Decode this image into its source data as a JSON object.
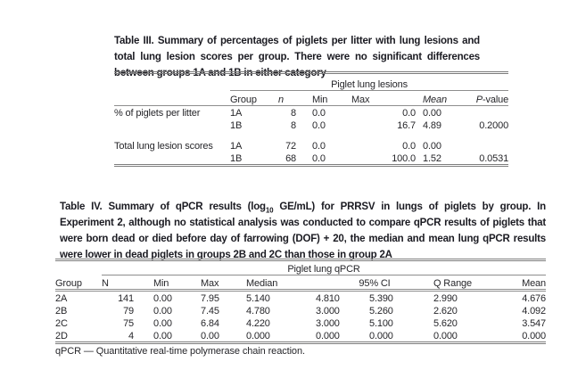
{
  "colors": {
    "page_background": "#ffffff",
    "caption_text": "#1b1b22",
    "body_text": "#26262a",
    "rule_gray": "#7d7d7d"
  },
  "table3": {
    "caption": "Table III. Summary of percentages of piglets per litter with lung lesions and total lung lesion scores per group. There were no significant differences between groups 1A and 1B in either category",
    "span_header": "Piglet lung lesions",
    "columns": {
      "group": "Group",
      "n": "n",
      "min": "Min",
      "max": "Max",
      "mean": "Mean",
      "p_prefix": "P",
      "p_suffix": "-value"
    },
    "rows": [
      {
        "label": "% of piglets per litter",
        "group": "1A",
        "n": "8",
        "min": "0.0",
        "max": "0.0",
        "mean": "0.00",
        "p": ""
      },
      {
        "label": "",
        "group": "1B",
        "n": "8",
        "min": "0.0",
        "max": "16.7",
        "mean": "4.89",
        "p": "0.2000"
      },
      {
        "label": "Total lung lesion scores",
        "group": "1A",
        "n": "72",
        "min": "0.0",
        "max": "0.0",
        "mean": "0.00",
        "p": ""
      },
      {
        "label": "",
        "group": "1B",
        "n": "68",
        "min": "0.0",
        "max": "100.0",
        "mean": "1.52",
        "p": "0.0531"
      }
    ]
  },
  "table4": {
    "caption_pre": "Table IV. Summary of qPCR results (log",
    "caption_sub": "10",
    "caption_post": " GE/mL) for PRRSV in lungs of piglets by group. In Experiment 2, although no statistical analysis was conducted to compare qPCR results of piglets that were born dead or died before day of farrowing (DOF) + 20, the median and mean lung qPCR results were lower in dead piglets in groups 2B and 2C than those in group 2A",
    "span_header": "Piglet lung qPCR",
    "columns": {
      "group": "Group",
      "n": "N",
      "min": "Min",
      "max": "Max",
      "median": "Median",
      "ci": "95% CI",
      "q_range": "Q Range",
      "mean": "Mean"
    },
    "rows": [
      {
        "group": "2A",
        "n": "141",
        "min": "0.00",
        "max": "7.95",
        "median": "5.140",
        "ci_low": "4.810",
        "ci_high": "5.390",
        "q_range": "2.990",
        "mean": "4.676"
      },
      {
        "group": "2B",
        "n": "79",
        "min": "0.00",
        "max": "7.45",
        "median": "4.780",
        "ci_low": "3.000",
        "ci_high": "5.260",
        "q_range": "2.620",
        "mean": "4.092"
      },
      {
        "group": "2C",
        "n": "75",
        "min": "0.00",
        "max": "6.84",
        "median": "4.220",
        "ci_low": "3.000",
        "ci_high": "5.100",
        "q_range": "5.620",
        "mean": "3.547"
      },
      {
        "group": "2D",
        "n": "4",
        "min": "0.00",
        "max": "0.00",
        "median": "0.000",
        "ci_low": "0.000",
        "ci_high": "0.000",
        "q_range": "0.000",
        "mean": "0.000"
      }
    ],
    "footnote": "qPCR — Quantitative real-time polymerase chain reaction."
  }
}
